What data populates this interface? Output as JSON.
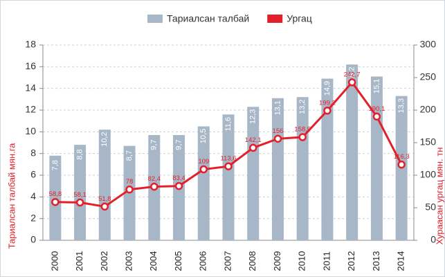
{
  "chart_data": {
    "type": "bar_line",
    "categories": [
      "2000",
      "2001",
      "2002",
      "2003",
      "2004",
      "2005",
      "2006",
      "2007",
      "2008",
      "2009",
      "2010",
      "2011",
      "2012",
      "2013",
      "2014"
    ],
    "series": [
      {
        "name": "Тариалсан талбай",
        "type": "bar",
        "color": "#a8b7c7",
        "axis": "y",
        "values": [
          7.8,
          8.8,
          10.2,
          8.7,
          9.7,
          9.7,
          10.5,
          11.6,
          12.3,
          13.1,
          13.2,
          14.9,
          16.2,
          15.1,
          13.3
        ],
        "value_labels": [
          "7,8",
          "8,8",
          "10,2",
          "8,7",
          "9,7",
          "9,7",
          "10,5",
          "11,6",
          "12,3",
          "13,1",
          "13,2",
          "14,9",
          "16,2",
          "15,1",
          "13,3"
        ]
      },
      {
        "name": "Ургац",
        "type": "line",
        "color": "#e3202a",
        "axis": "y2",
        "values": [
          58.8,
          58.1,
          51.8,
          78,
          82.4,
          83.4,
          109,
          113.6,
          142.1,
          156,
          158.5,
          199.2,
          242.7,
          190.1,
          116.3
        ],
        "value_labels": [
          "58,8",
          "58,1",
          "51,8",
          "78",
          "82,4",
          "83,4",
          "109",
          "113,6",
          "142,1",
          "156",
          "158,5",
          "199,2",
          "242,7",
          "190,1",
          "116,3"
        ]
      }
    ],
    "ylabel": "Тариалсан талбай мян.га",
    "y2label": "Хураасан ургац мян. тн",
    "ylim": [
      0,
      18
    ],
    "yticks": [
      0,
      2,
      4,
      6,
      8,
      10,
      12,
      14,
      16,
      18
    ],
    "y2lim": [
      0,
      300
    ],
    "y2ticks": [
      0,
      50,
      100,
      150,
      200,
      250,
      300
    ],
    "grid": true,
    "legend": "top"
  }
}
